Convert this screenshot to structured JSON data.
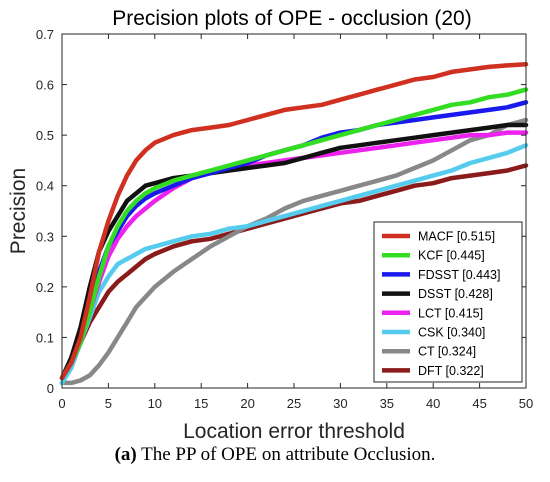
{
  "chart_data": {
    "type": "line",
    "title": "Precision plots of OPE - occlusion (20)",
    "xlabel": "Location error threshold",
    "ylabel": "Precision",
    "xlim": [
      0,
      50
    ],
    "ylim": [
      0,
      0.7
    ],
    "x_ticks": [
      "0",
      "5",
      "10",
      "15",
      "20",
      "25",
      "30",
      "35",
      "40",
      "45",
      "50"
    ],
    "y_ticks": [
      "0",
      "0.1",
      "0.2",
      "0.3",
      "0.4",
      "0.5",
      "0.6",
      "0.7"
    ],
    "legend_position": "bottom-right",
    "grid": false,
    "series": [
      {
        "name": "MACF [0.515]",
        "color": "#d03020",
        "x": [
          0,
          1,
          2,
          3,
          4,
          5,
          6,
          7,
          8,
          9,
          10,
          12,
          14,
          16,
          18,
          20,
          22,
          24,
          26,
          28,
          30,
          32,
          34,
          36,
          38,
          40,
          42,
          44,
          46,
          48,
          50
        ],
        "y": [
          0.02,
          0.05,
          0.1,
          0.18,
          0.27,
          0.33,
          0.38,
          0.42,
          0.45,
          0.47,
          0.485,
          0.5,
          0.51,
          0.515,
          0.52,
          0.53,
          0.54,
          0.55,
          0.555,
          0.56,
          0.57,
          0.58,
          0.59,
          0.6,
          0.61,
          0.615,
          0.625,
          0.63,
          0.635,
          0.638,
          0.64
        ]
      },
      {
        "name": "KCF [0.445]",
        "color": "#33dd22",
        "x": [
          0,
          1,
          2,
          3,
          4,
          5,
          6,
          7,
          8,
          9,
          10,
          12,
          14,
          16,
          18,
          20,
          22,
          24,
          26,
          28,
          30,
          32,
          34,
          36,
          38,
          40,
          42,
          44,
          46,
          48,
          50
        ],
        "y": [
          0.02,
          0.05,
          0.09,
          0.15,
          0.22,
          0.28,
          0.32,
          0.35,
          0.37,
          0.385,
          0.395,
          0.41,
          0.42,
          0.43,
          0.44,
          0.45,
          0.46,
          0.47,
          0.48,
          0.49,
          0.5,
          0.51,
          0.52,
          0.53,
          0.54,
          0.55,
          0.56,
          0.565,
          0.575,
          0.58,
          0.59
        ]
      },
      {
        "name": "FDSST [0.443]",
        "color": "#1a1aee",
        "x": [
          0,
          1,
          2,
          3,
          4,
          5,
          6,
          7,
          8,
          9,
          10,
          12,
          14,
          16,
          18,
          20,
          22,
          24,
          26,
          28,
          30,
          32,
          34,
          36,
          38,
          40,
          42,
          44,
          46,
          48,
          50
        ],
        "y": [
          0.02,
          0.05,
          0.09,
          0.16,
          0.23,
          0.28,
          0.31,
          0.34,
          0.36,
          0.375,
          0.385,
          0.4,
          0.415,
          0.425,
          0.435,
          0.445,
          0.46,
          0.47,
          0.48,
          0.495,
          0.505,
          0.51,
          0.52,
          0.525,
          0.53,
          0.535,
          0.54,
          0.545,
          0.55,
          0.555,
          0.565
        ]
      },
      {
        "name": "DSST [0.428]",
        "color": "#111111",
        "x": [
          0,
          1,
          2,
          3,
          4,
          5,
          6,
          7,
          8,
          9,
          10,
          12,
          14,
          16,
          18,
          20,
          22,
          24,
          26,
          28,
          30,
          32,
          34,
          36,
          38,
          40,
          42,
          44,
          46,
          48,
          50
        ],
        "y": [
          0.02,
          0.06,
          0.12,
          0.2,
          0.27,
          0.31,
          0.34,
          0.37,
          0.385,
          0.4,
          0.405,
          0.415,
          0.42,
          0.425,
          0.43,
          0.435,
          0.44,
          0.445,
          0.455,
          0.465,
          0.475,
          0.48,
          0.485,
          0.49,
          0.495,
          0.5,
          0.505,
          0.51,
          0.515,
          0.52,
          0.52
        ]
      },
      {
        "name": "LCT [0.415]",
        "color": "#ee22ee",
        "x": [
          0,
          1,
          2,
          3,
          4,
          5,
          6,
          7,
          8,
          9,
          10,
          12,
          14,
          16,
          18,
          20,
          22,
          24,
          26,
          28,
          30,
          32,
          34,
          36,
          38,
          40,
          42,
          44,
          46,
          48,
          50
        ],
        "y": [
          0.02,
          0.05,
          0.09,
          0.15,
          0.21,
          0.26,
          0.295,
          0.32,
          0.34,
          0.355,
          0.37,
          0.395,
          0.415,
          0.425,
          0.435,
          0.44,
          0.445,
          0.45,
          0.455,
          0.46,
          0.465,
          0.47,
          0.475,
          0.48,
          0.485,
          0.49,
          0.495,
          0.5,
          0.5,
          0.505,
          0.505
        ]
      },
      {
        "name": "CSK [0.340]",
        "color": "#55ccee",
        "x": [
          0,
          1,
          2,
          3,
          4,
          5,
          6,
          7,
          8,
          9,
          10,
          12,
          14,
          16,
          18,
          20,
          22,
          24,
          26,
          28,
          30,
          32,
          34,
          36,
          38,
          40,
          42,
          44,
          46,
          48,
          50
        ],
        "y": [
          0.01,
          0.04,
          0.09,
          0.14,
          0.19,
          0.22,
          0.245,
          0.255,
          0.265,
          0.275,
          0.28,
          0.29,
          0.3,
          0.305,
          0.315,
          0.32,
          0.33,
          0.34,
          0.35,
          0.36,
          0.37,
          0.38,
          0.39,
          0.4,
          0.41,
          0.42,
          0.43,
          0.445,
          0.455,
          0.465,
          0.48
        ]
      },
      {
        "name": "CT [0.324]",
        "color": "#888888",
        "x": [
          0,
          1,
          2,
          3,
          4,
          5,
          6,
          7,
          8,
          9,
          10,
          12,
          14,
          16,
          18,
          20,
          22,
          24,
          26,
          28,
          30,
          32,
          34,
          36,
          38,
          40,
          42,
          44,
          46,
          48,
          50
        ],
        "y": [
          0.01,
          0.01,
          0.015,
          0.025,
          0.045,
          0.07,
          0.1,
          0.13,
          0.16,
          0.18,
          0.2,
          0.23,
          0.255,
          0.28,
          0.3,
          0.32,
          0.335,
          0.355,
          0.37,
          0.38,
          0.39,
          0.4,
          0.41,
          0.42,
          0.435,
          0.45,
          0.47,
          0.49,
          0.5,
          0.52,
          0.53
        ]
      },
      {
        "name": "DFT [0.322]",
        "color": "#8b1a1a",
        "x": [
          0,
          1,
          2,
          3,
          4,
          5,
          6,
          7,
          8,
          9,
          10,
          12,
          14,
          16,
          18,
          20,
          22,
          24,
          26,
          28,
          30,
          32,
          34,
          36,
          38,
          40,
          42,
          44,
          46,
          48,
          50
        ],
        "y": [
          0.02,
          0.05,
          0.09,
          0.13,
          0.16,
          0.19,
          0.21,
          0.225,
          0.24,
          0.255,
          0.265,
          0.28,
          0.29,
          0.295,
          0.305,
          0.315,
          0.325,
          0.335,
          0.345,
          0.355,
          0.365,
          0.37,
          0.38,
          0.39,
          0.4,
          0.405,
          0.415,
          0.42,
          0.425,
          0.43,
          0.44
        ]
      }
    ]
  },
  "caption": {
    "label": "(a)",
    "text": " The PP of OPE on attribute Occlusion."
  }
}
